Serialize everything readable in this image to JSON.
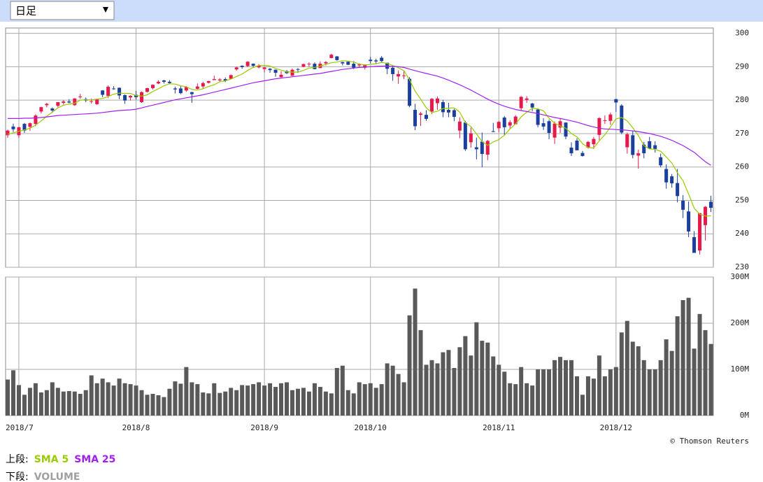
{
  "period_select": "日足",
  "credit": "© Thomson Reuters",
  "chart_data": [
    {
      "type": "candlestick",
      "legend_label": "上段:",
      "up_color": "#e8194a",
      "down_color": "#1b3f9c",
      "ylim": [
        230,
        301.6
      ],
      "yticks": [
        230,
        240,
        250,
        260,
        270,
        280,
        290,
        300
      ],
      "grid": true,
      "open": [
        269.5,
        272.1,
        269.5,
        272.9,
        272.0,
        272.9,
        276.6,
        278.5,
        277.5,
        278.3,
        279.2,
        279.6,
        278.5,
        281.0,
        280.3,
        279.5,
        278.8,
        282.9,
        281.3,
        283.5,
        283.7,
        281.5,
        280.8,
        281.6,
        279.4,
        282.5,
        283.6,
        285.0,
        285.9,
        285.5,
        283.5,
        283.5,
        282.9,
        282.4,
        283.4,
        284.1,
        285.2,
        286.0,
        285.9,
        286.3,
        286.4,
        289.2,
        290.3,
        290.2,
        290.9,
        289.8,
        289.3,
        289.4,
        289.1,
        286.9,
        288.7,
        287.3,
        289.3,
        290.0,
        290.8,
        290.9,
        289.6,
        291.0,
        292.6,
        293.1,
        291.4,
        291.5,
        290.9,
        290.4,
        289.7,
        292.1,
        291.9,
        292.7,
        291.2,
        289.7,
        287.1,
        287.2,
        286.4,
        277.1,
        275.6,
        275.6,
        276.6,
        279.1,
        279.4,
        277.1,
        277.0,
        270.9,
        273.3,
        267.4,
        265.9,
        267.6,
        263.7,
        270.7,
        271.6,
        274.8,
        272.4,
        272.8,
        277.6,
        280.1,
        279.0,
        277.2,
        273.1,
        273.7,
        268.8,
        271.8,
        273.3,
        265.8,
        267.9,
        264.2,
        265.8,
        266.8,
        269.6,
        273.9,
        273.8,
        280.3,
        278.4,
        265.9,
        269.5,
        263.4,
        266.7,
        267.7,
        266.5,
        262.9,
        259.4,
        257.2,
        255.2,
        249.9,
        246.7,
        239.0,
        235.0,
        242.6,
        249.6
      ],
      "high": [
        271.2,
        273.0,
        272.0,
        273.2,
        273.3,
        275.8,
        278.0,
        279.2,
        277.8,
        279.4,
        280.0,
        280.3,
        280.6,
        281.9,
        280.8,
        280.5,
        280.4,
        283.0,
        284.4,
        284.2,
        283.8,
        281.7,
        281.5,
        282.8,
        282.6,
        283.7,
        284.7,
        286.0,
        286.1,
        286.0,
        284.0,
        284.2,
        284.2,
        282.5,
        285.0,
        285.5,
        285.8,
        287.3,
        286.6,
        286.8,
        287.7,
        290.0,
        290.4,
        291.7,
        291.0,
        290.8,
        289.9,
        289.6,
        289.2,
        288.7,
        289.0,
        289.5,
        289.6,
        290.9,
        291.3,
        291.3,
        291.6,
        291.7,
        293.9,
        293.2,
        291.5,
        291.6,
        291.7,
        291.0,
        290.7,
        292.9,
        292.4,
        293.2,
        291.2,
        290.3,
        288.9,
        288.9,
        286.9,
        278.9,
        276.5,
        277.0,
        280.6,
        281.1,
        280.1,
        279.2,
        277.4,
        274.9,
        273.8,
        271.8,
        268.8,
        270.3,
        268.1,
        273.2,
        273.7,
        275.2,
        274.0,
        275.5,
        281.2,
        281.2,
        279.2,
        277.5,
        274.6,
        274.2,
        273.6,
        274.4,
        273.4,
        267.4,
        268.6,
        264.8,
        267.8,
        269.0,
        274.9,
        275.4,
        276.3,
        280.4,
        278.8,
        270.3,
        270.7,
        265.2,
        267.5,
        269.0,
        267.7,
        264.0,
        260.8,
        257.9,
        259.4,
        251.6,
        249.7,
        240.8,
        246.2,
        248.3,
        251.4
      ],
      "low": [
        268.7,
        270.5,
        268.7,
        270.2,
        270.8,
        272.2,
        276.0,
        277.9,
        276.2,
        277.9,
        278.7,
        279.1,
        278.3,
        280.5,
        279.4,
        279.0,
        278.6,
        280.9,
        280.6,
        283.1,
        280.3,
        278.9,
        279.9,
        280.2,
        279.2,
        282.3,
        283.2,
        284.8,
        285.0,
        284.8,
        282.0,
        281.8,
        282.5,
        279.2,
        283.2,
        283.4,
        285.0,
        286.0,
        285.5,
        285.4,
        286.4,
        288.8,
        289.4,
        289.9,
        289.9,
        289.5,
        288.3,
        288.2,
        287.0,
        286.7,
        287.8,
        287.3,
        288.2,
        289.8,
        290.0,
        289.2,
        289.6,
        290.4,
        292.5,
        291.8,
        290.4,
        290.5,
        289.3,
        289.8,
        289.2,
        291.0,
        290.8,
        291.3,
        287.8,
        285.8,
        284.9,
        286.3,
        277.9,
        271.0,
        272.3,
        273.8,
        275.9,
        277.1,
        274.9,
        274.9,
        273.7,
        268.6,
        264.8,
        265.8,
        262.3,
        259.9,
        262.1,
        270.4,
        270.4,
        269.6,
        271.4,
        272.8,
        277.0,
        279.2,
        276.7,
        271.9,
        271.1,
        268.3,
        266.9,
        270.2,
        268.3,
        263.3,
        265.0,
        263.1,
        265.5,
        265.4,
        268.0,
        272.9,
        272.6,
        276.5,
        269.8,
        264.0,
        262.6,
        259.5,
        262.6,
        265.3,
        264.3,
        259.9,
        253.5,
        253.8,
        249.4,
        244.7,
        239.0,
        234.3,
        233.8,
        238.0,
        246.5
      ],
      "close": [
        270.9,
        271.3,
        271.9,
        270.9,
        273.1,
        275.4,
        277.9,
        278.9,
        276.9,
        279.4,
        279.6,
        279.3,
        280.5,
        281.1,
        279.9,
        279.7,
        280.2,
        281.6,
        284.0,
        283.3,
        281.4,
        279.9,
        281.3,
        280.9,
        282.4,
        283.6,
        284.6,
        285.5,
        285.5,
        285.1,
        283.2,
        282.1,
        283.9,
        281.8,
        284.1,
        285.1,
        285.7,
        286.3,
        286.2,
        285.8,
        287.5,
        289.8,
        289.9,
        291.5,
        290.3,
        290.3,
        289.8,
        289.0,
        288.2,
        287.6,
        288.1,
        289.1,
        289.1,
        290.8,
        290.9,
        289.3,
        290.9,
        291.4,
        293.6,
        292.0,
        291.0,
        290.6,
        289.7,
        290.7,
        290.7,
        291.7,
        291.6,
        291.7,
        289.4,
        287.8,
        287.8,
        287.4,
        278.3,
        272.2,
        276.0,
        274.4,
        280.4,
        280.5,
        276.4,
        276.3,
        275.0,
        273.6,
        265.3,
        270.1,
        265.3,
        263.9,
        267.8,
        270.6,
        273.5,
        271.9,
        273.4,
        275.1,
        281.0,
        280.5,
        277.8,
        272.6,
        272.1,
        270.2,
        273.0,
        273.7,
        269.1,
        264.1,
        265.0,
        263.3,
        267.5,
        268.4,
        274.6,
        274.0,
        275.7,
        279.3,
        270.3,
        269.8,
        263.6,
        264.1,
        264.1,
        265.5,
        265.4,
        260.5,
        255.4,
        255.1,
        251.3,
        247.2,
        240.7,
        234.3,
        246.2,
        248.1,
        247.8
      ],
      "series": [
        {
          "name": "SMA 5",
          "color": "#99cc00",
          "values": [
            269.8,
            270.2,
            270.7,
            271.1,
            271.6,
            272.5,
            273.8,
            275.2,
            276.4,
            277.7,
            278.5,
            278.8,
            279.1,
            280.0,
            280.1,
            280.1,
            280.3,
            280.5,
            281.1,
            281.8,
            282.1,
            282.0,
            282.0,
            281.4,
            281.2,
            281.6,
            282.6,
            283.4,
            284.3,
            284.9,
            284.8,
            284.3,
            284.0,
            283.2,
            283.0,
            283.4,
            284.1,
            284.6,
            285.5,
            285.8,
            286.3,
            287.1,
            287.8,
            288.9,
            289.8,
            290.4,
            290.4,
            290.2,
            289.5,
            289.0,
            288.5,
            288.4,
            288.4,
            288.9,
            289.6,
            289.8,
            290.2,
            290.7,
            291.2,
            291.4,
            291.8,
            291.7,
            291.4,
            290.8,
            290.5,
            290.7,
            290.9,
            291.3,
            291.0,
            290.4,
            289.7,
            288.8,
            286.1,
            282.7,
            280.3,
            277.7,
            276.3,
            276.7,
            277.5,
            277.6,
            277.7,
            276.4,
            273.3,
            272.1,
            269.9,
            267.6,
            266.5,
            267.5,
            268.2,
            269.5,
            271.4,
            272.9,
            275.0,
            276.4,
            277.6,
            277.4,
            276.8,
            274.6,
            273.1,
            272.3,
            271.6,
            270.0,
            269.0,
            267.0,
            265.8,
            265.7,
            267.8,
            269.6,
            272.0,
            274.4,
            274.8,
            273.8,
            271.7,
            269.4,
            266.4,
            265.4,
            265.3,
            264.7,
            263.0,
            261.2,
            258.3,
            255.9,
            251.9,
            247.7,
            245.9,
            245.3,
            245.4
          ]
        },
        {
          "name": "SMA 25",
          "color": "#a020f0",
          "values": [
            274.5,
            274.5,
            274.5,
            274.6,
            274.6,
            274.7,
            274.8,
            275.0,
            275.2,
            275.4,
            275.5,
            275.6,
            275.7,
            275.8,
            275.9,
            276.0,
            276.1,
            276.3,
            276.5,
            276.7,
            276.9,
            277.0,
            277.1,
            277.3,
            277.7,
            278.1,
            278.5,
            278.9,
            279.3,
            279.7,
            280.1,
            280.4,
            280.7,
            281.0,
            281.3,
            281.6,
            282.0,
            282.4,
            282.8,
            283.2,
            283.6,
            284.0,
            284.4,
            284.8,
            285.2,
            285.5,
            285.8,
            286.1,
            286.4,
            286.6,
            286.8,
            287.0,
            287.2,
            287.4,
            287.6,
            287.8,
            288.0,
            288.3,
            288.6,
            288.9,
            289.2,
            289.4,
            289.6,
            289.8,
            289.9,
            290.0,
            290.1,
            290.2,
            290.2,
            290.1,
            290.0,
            289.8,
            289.3,
            288.8,
            288.4,
            288.0,
            287.6,
            287.2,
            286.6,
            286.0,
            285.3,
            284.6,
            283.8,
            283.0,
            282.1,
            281.2,
            280.3,
            279.5,
            278.8,
            278.2,
            277.7,
            277.2,
            276.9,
            276.6,
            276.3,
            276.0,
            275.6,
            275.2,
            274.8,
            274.5,
            274.2,
            273.8,
            273.4,
            272.9,
            272.4,
            272.0,
            271.6,
            271.4,
            271.3,
            271.2,
            271.1,
            271.0,
            270.8,
            270.6,
            270.3,
            270.0,
            269.6,
            269.2,
            268.6,
            268.0,
            267.2,
            266.4,
            265.4,
            264.4,
            263.0,
            261.6,
            260.5
          ]
        }
      ]
    },
    {
      "type": "bar",
      "legend_label": "下段:",
      "name": "VOLUME",
      "color": "#595959",
      "legend_color": "#a0a0a0",
      "ylim": [
        0,
        300
      ],
      "yticks": [
        {
          "value": 0,
          "label": "0M"
        },
        {
          "value": 100,
          "label": "100M"
        },
        {
          "value": 200,
          "label": "200M"
        },
        {
          "value": 300,
          "label": "300M"
        }
      ],
      "grid": true,
      "categories": [
        null,
        null,
        "2018/7",
        null,
        null,
        null,
        null,
        null,
        null,
        null,
        null,
        null,
        null,
        null,
        null,
        null,
        null,
        null,
        null,
        null,
        null,
        null,
        null,
        "2018/8",
        null,
        null,
        null,
        null,
        null,
        null,
        null,
        null,
        null,
        null,
        null,
        null,
        null,
        null,
        null,
        null,
        null,
        null,
        null,
        null,
        null,
        null,
        "2018/9",
        null,
        null,
        null,
        null,
        null,
        null,
        null,
        null,
        null,
        null,
        null,
        null,
        null,
        null,
        null,
        null,
        null,
        null,
        "2018/10",
        null,
        null,
        null,
        null,
        null,
        null,
        null,
        null,
        null,
        null,
        null,
        null,
        null,
        null,
        null,
        null,
        null,
        null,
        null,
        null,
        null,
        null,
        "2018/11",
        null,
        null,
        null,
        null,
        null,
        null,
        null,
        null,
        null,
        null,
        null,
        null,
        null,
        null,
        null,
        null,
        null,
        null,
        null,
        null,
        "2018/12",
        null,
        null,
        null,
        null,
        null,
        null,
        null,
        null,
        null,
        null,
        null,
        null,
        null,
        null,
        null,
        null,
        null
      ],
      "values": [
        78,
        98,
        66,
        45,
        60,
        70,
        50,
        55,
        72,
        60,
        52,
        53,
        52,
        47,
        55,
        87,
        70,
        80,
        72,
        65,
        80,
        70,
        68,
        65,
        55,
        45,
        47,
        44,
        40,
        58,
        74,
        69,
        105,
        72,
        68,
        50,
        48,
        70,
        49,
        52,
        60,
        55,
        66,
        65,
        68,
        72,
        65,
        70,
        62,
        70,
        72,
        55,
        58,
        60,
        52,
        70,
        62,
        52,
        48,
        103,
        108,
        55,
        48,
        72,
        68,
        70,
        60,
        68,
        113,
        108,
        90,
        72,
        217,
        275,
        185,
        110,
        120,
        113,
        137,
        142,
        103,
        148,
        172,
        130,
        202,
        162,
        158,
        128,
        110,
        95,
        70,
        68,
        105,
        70,
        65,
        100,
        100,
        100,
        120,
        127,
        120,
        120,
        85,
        45,
        85,
        80,
        130,
        85,
        100,
        105,
        180,
        205,
        160,
        150,
        120,
        100,
        100,
        120,
        165,
        140,
        215,
        250,
        255,
        145,
        220,
        185,
        155
      ]
    }
  ]
}
